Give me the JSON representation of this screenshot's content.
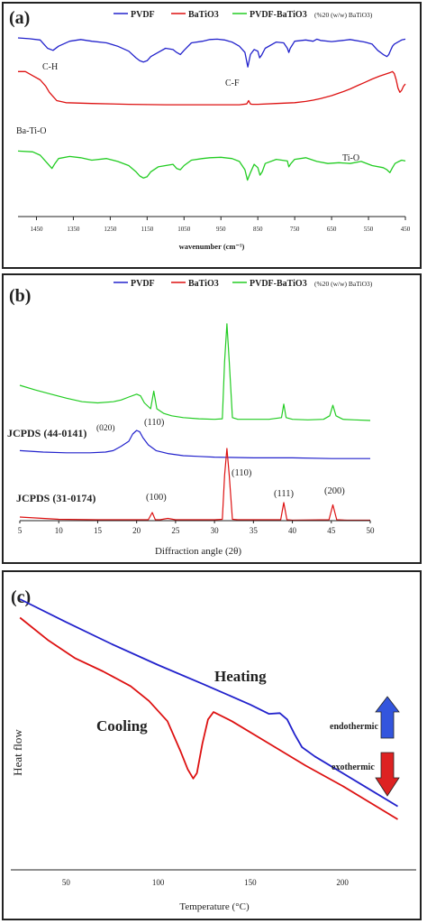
{
  "colors": {
    "pvdf": "#2222cc",
    "batio3": "#dd1111",
    "composite": "#22cc22",
    "axis": "#222222",
    "arrow_up": "#3355dd",
    "arrow_down": "#dd2222"
  },
  "panel_a": {
    "panel_label": "(a)",
    "legend": [
      {
        "series": "PVDF",
        "note": ""
      },
      {
        "series": "BaTiO3",
        "note": ""
      },
      {
        "series": "PVDF-BaTiO3",
        "note": "(%20 (w/w) BaTiO3)"
      }
    ],
    "annotations": [
      "C-H",
      "C-F",
      "Ba-Ti-O",
      "Ti-O"
    ],
    "xlabel": "wavenumber (cm⁻¹)"
  },
  "panel_b": {
    "panel_label": "(b)",
    "legend": [
      {
        "series": "PVDF",
        "note": ""
      },
      {
        "series": "BaTiO3",
        "note": ""
      },
      {
        "series": "PVDF-BaTiO3",
        "note": "(%20 (w/w) BaTiO3)"
      }
    ],
    "ref_labels": [
      "JCPDS (44-0141)",
      "JCPDS (31-0174)"
    ],
    "peak_labels": [
      "(020)",
      "(110)",
      "(110)",
      "(100)",
      "(111)",
      "(200)"
    ],
    "xlabel": "Diffraction angle (2θ)"
  },
  "panel_c": {
    "panel_label": "(c)",
    "ylabel": "Heat flow",
    "xlabel": "Temperature (°C)",
    "curve_labels": [
      "Heating",
      "Cooling"
    ],
    "arrow_labels": [
      "endothermic",
      "exothermic"
    ]
  },
  "chart_data": [
    {
      "type": "line",
      "title": "",
      "xlabel": "wavenumber (cm⁻¹)",
      "ylabel": "",
      "xlim": [
        1500,
        450
      ],
      "x_reversed": true,
      "xticks": [
        1450,
        1350,
        1250,
        1150,
        1050,
        950,
        850,
        750,
        650,
        550,
        450
      ],
      "legend_position": "top",
      "series": [
        {
          "name": "PVDF",
          "color": "#2222cc",
          "offset": 0,
          "x": [
            1500,
            1470,
            1440,
            1430,
            1420,
            1405,
            1390,
            1360,
            1330,
            1300,
            1260,
            1230,
            1200,
            1180,
            1170,
            1160,
            1150,
            1140,
            1120,
            1100,
            1080,
            1070,
            1060,
            1050,
            1030,
            1000,
            980,
            960,
            940,
            920,
            900,
            885,
            877,
            870,
            860,
            850,
            845,
            840,
            830,
            800,
            780,
            770,
            766,
            762,
            750,
            720,
            700,
            690,
            680,
            650,
            620,
            600,
            560,
            540,
            525,
            510,
            500,
            495,
            490,
            485,
            480,
            470,
            460,
            450
          ],
          "y": [
            0,
            0.2,
            0.5,
            1.5,
            2.5,
            3.0,
            2.0,
            0.8,
            0.4,
            0.8,
            1.2,
            2.0,
            3.2,
            4.8,
            5.5,
            5.8,
            5.5,
            4.5,
            3.5,
            2.5,
            2.8,
            3.5,
            4.0,
            3.0,
            1.2,
            0.8,
            0.4,
            0.3,
            0.5,
            1.0,
            2.0,
            3.5,
            7.0,
            4.0,
            2.8,
            3.2,
            4.8,
            4.2,
            2.5,
            1.0,
            1.2,
            2.5,
            3.5,
            2.5,
            0.8,
            0.5,
            0.8,
            0.3,
            0.6,
            0.9,
            0.6,
            0.4,
            1.0,
            1.5,
            3.0,
            4.0,
            4.5,
            4.0,
            3.0,
            2.0,
            1.5,
            1.0,
            0.5,
            0.3
          ]
        },
        {
          "name": "BaTiO3",
          "color": "#dd1111",
          "offset": 1,
          "x": [
            1500,
            1480,
            1460,
            1440,
            1425,
            1415,
            1405,
            1395,
            1370,
            1300,
            1200,
            1100,
            1000,
            950,
            900,
            880,
            875,
            870,
            865,
            850,
            800,
            750,
            720,
            700,
            680,
            650,
            620,
            600,
            580,
            560,
            540,
            520,
            500,
            490,
            485,
            480,
            475,
            470,
            465,
            460,
            455,
            450
          ],
          "y": [
            -4.5,
            -4.5,
            -3.5,
            -2.5,
            -1.0,
            0.5,
            1.5,
            2.5,
            3.0,
            3.2,
            3.4,
            3.5,
            3.5,
            3.5,
            3.5,
            3.3,
            2.5,
            3.3,
            3.4,
            3.4,
            3.2,
            3.0,
            2.7,
            2.4,
            2.0,
            1.3,
            0.4,
            -0.3,
            -1.1,
            -1.9,
            -2.7,
            -3.4,
            -4.0,
            -4.3,
            -4.5,
            -4.0,
            -2.5,
            -0.5,
            0.5,
            0.0,
            -1.0,
            -1.5
          ]
        },
        {
          "name": "PVDF-BaTiO3",
          "color": "#22cc22",
          "offset": 2,
          "x": [
            1500,
            1460,
            1440,
            1430,
            1420,
            1408,
            1400,
            1390,
            1360,
            1330,
            1300,
            1260,
            1230,
            1200,
            1180,
            1170,
            1160,
            1150,
            1140,
            1120,
            1100,
            1080,
            1070,
            1060,
            1050,
            1030,
            1000,
            980,
            950,
            920,
            900,
            885,
            878,
            870,
            860,
            850,
            844,
            838,
            830,
            800,
            770,
            766,
            760,
            750,
            720,
            690,
            660,
            630,
            600,
            570,
            540,
            510,
            500,
            492,
            485,
            478,
            470,
            460,
            450
          ],
          "y": [
            -1.0,
            -0.8,
            0,
            1.0,
            2.0,
            3.2,
            2.0,
            0.8,
            0.3,
            0.6,
            1.2,
            0.8,
            1.5,
            2.5,
            4.0,
            5.0,
            5.5,
            5.2,
            4.0,
            2.8,
            2.5,
            2.2,
            3.2,
            3.5,
            2.5,
            1.2,
            0.8,
            0.6,
            0.5,
            0.8,
            1.5,
            3.5,
            6.0,
            4.2,
            2.2,
            3.0,
            4.8,
            4.0,
            2.0,
            1.0,
            1.4,
            2.8,
            2.0,
            1.0,
            0.6,
            1.5,
            2.0,
            1.8,
            2.0,
            1.5,
            2.5,
            3.0,
            3.5,
            4.2,
            3.0,
            2.0,
            1.6,
            1.2,
            1.4
          ]
        }
      ],
      "annotations": [
        {
          "text": "C-H",
          "x": 1430
        },
        {
          "text": "C-F",
          "x": 877
        },
        {
          "text": "Ba-Ti-O",
          "x": 1420
        },
        {
          "text": "Ti-O",
          "x": 520
        }
      ]
    },
    {
      "type": "line",
      "title": "",
      "xlabel": "Diffraction angle (2θ)",
      "ylabel": "",
      "xlim": [
        5,
        50
      ],
      "xticks": [
        5,
        10,
        15,
        20,
        25,
        30,
        35,
        40,
        45,
        50
      ],
      "legend_position": "top",
      "series": [
        {
          "name": "PVDF-BaTiO3",
          "color": "#22cc22",
          "offset": 2,
          "x": [
            5,
            7,
            9,
            11,
            13,
            15,
            17,
            18,
            19,
            20,
            20.5,
            21,
            21.8,
            22.2,
            22.6,
            23.5,
            24.5,
            26,
            28,
            30,
            31,
            31.3,
            31.6,
            31.9,
            32.3,
            33,
            35,
            37,
            38.6,
            38.9,
            39.2,
            40,
            42,
            44,
            44.8,
            45.2,
            45.6,
            46.5,
            48,
            50
          ],
          "y": [
            60,
            52,
            45,
            38,
            32,
            30,
            32,
            35,
            40,
            45,
            42,
            30,
            20,
            50,
            20,
            12,
            8,
            5,
            3,
            2,
            3,
            100,
            165,
            100,
            5,
            2,
            2,
            2,
            5,
            28,
            5,
            2,
            1,
            2,
            8,
            26,
            8,
            2,
            1,
            0
          ]
        },
        {
          "name": "PVDF",
          "color": "#2222cc",
          "offset": 1,
          "x": [
            5,
            8,
            11,
            14,
            16,
            17,
            18,
            19,
            19.5,
            20,
            20.4,
            20.8,
            21.5,
            22.5,
            24,
            26,
            28,
            30,
            35,
            40,
            45,
            50
          ],
          "y": [
            12,
            10,
            9,
            9,
            10,
            12,
            18,
            25,
            35,
            40,
            38,
            30,
            20,
            12,
            8,
            5,
            4,
            3,
            2,
            2,
            1,
            1
          ]
        },
        {
          "name": "BaTiO3",
          "color": "#dd1111",
          "offset": 0,
          "x": [
            5,
            8,
            10,
            15,
            20,
            21.5,
            22,
            22.4,
            23,
            24,
            25,
            30,
            31,
            31.3,
            31.6,
            31.9,
            32.3,
            33,
            38.5,
            38.9,
            39.3,
            40,
            44.7,
            45.2,
            45.7,
            47,
            50
          ],
          "y": [
            8,
            5,
            3,
            2,
            2,
            2,
            18,
            2,
            2,
            5,
            2,
            2,
            3,
            100,
            160,
            100,
            3,
            2,
            2,
            40,
            2,
            1,
            2,
            35,
            2,
            1,
            1
          ]
        }
      ],
      "annotations": [
        {
          "text": "(020)",
          "x": 18.5
        },
        {
          "text": "(110)",
          "x": 20.3
        },
        {
          "text": "(110)",
          "x": 31.6
        },
        {
          "text": "(100)",
          "x": 22.2
        },
        {
          "text": "(111)",
          "x": 38.9
        },
        {
          "text": "(200)",
          "x": 45.2
        }
      ]
    },
    {
      "type": "line",
      "title": "",
      "xlabel": "Temperature (°C)",
      "ylabel": "Heat flow",
      "xlim": [
        20,
        240
      ],
      "xticks": [
        50,
        100,
        150,
        200
      ],
      "series": [
        {
          "name": "Heating",
          "color": "#2222cc",
          "x": [
            25,
            50,
            75,
            100,
            125,
            150,
            160,
            166,
            170,
            174,
            178,
            185,
            200,
            215,
            230
          ],
          "y": [
            0.0,
            -0.62,
            -1.22,
            -1.78,
            -2.31,
            -2.85,
            -3.1,
            -3.08,
            -3.25,
            -3.65,
            -4.0,
            -4.25,
            -4.7,
            -5.15,
            -5.6
          ]
        },
        {
          "name": "Cooling",
          "color": "#dd1111",
          "x": [
            25,
            40,
            55,
            70,
            85,
            95,
            105,
            112,
            116,
            119,
            121,
            124,
            127,
            130,
            140,
            160,
            180,
            200,
            215,
            230
          ],
          "y": [
            -0.5,
            -1.1,
            -1.6,
            -1.95,
            -2.35,
            -2.75,
            -3.3,
            -4.1,
            -4.6,
            -4.85,
            -4.7,
            -3.9,
            -3.25,
            -3.05,
            -3.3,
            -3.9,
            -4.5,
            -5.05,
            -5.5,
            -5.95
          ]
        }
      ]
    }
  ]
}
